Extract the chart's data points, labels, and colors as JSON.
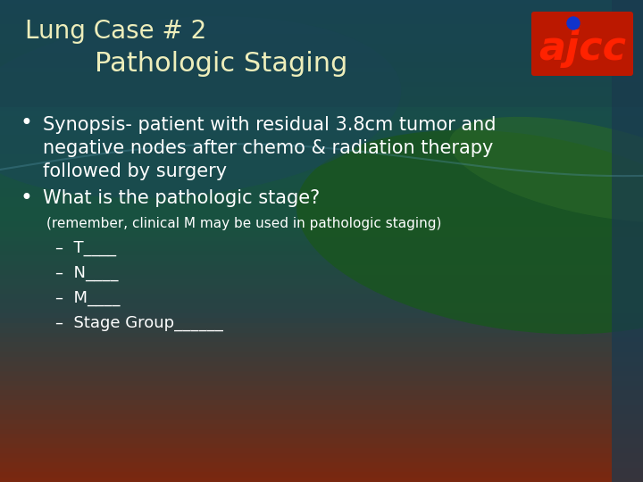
{
  "title_line1": "Lung Case # 2",
  "title_line2": "        Pathologic Staging",
  "bullet1_lines": [
    "Synopsis- patient with residual 3.8cm tumor and",
    "negative nodes after chemo & radiation therapy",
    "followed by surgery"
  ],
  "bullet2": "What is the pathologic stage?",
  "sub_note": "(remember, clinical M may be used in pathologic staging)",
  "dash_items": [
    "–  T____",
    "–  N____",
    "–  M____",
    "–  Stage Group______"
  ],
  "title_color": "#EEEEBB",
  "bullet_color": "#FFFFFF",
  "sub_note_color": "#FFFFFF",
  "dash_color": "#FFFFFF",
  "ajcc_text_color": "#DD1100",
  "ajcc_dot_color": "#1133cc",
  "title_fontsize": 20,
  "bullet_fontsize": 15,
  "sub_fontsize": 11,
  "dash_fontsize": 13,
  "ajcc_fontsize": 32,
  "bg_top": "#1a4a5a",
  "bg_mid_teal": "#1a5060",
  "bg_mid_green": "#1a5a30",
  "bg_bottom": "#8a3515"
}
